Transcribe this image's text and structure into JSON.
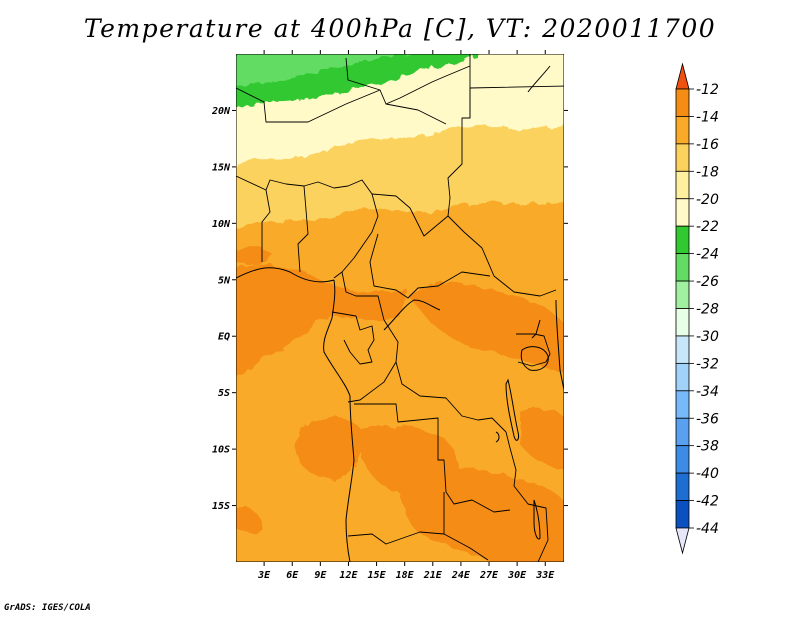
{
  "chart_data": {
    "type": "heatmap",
    "title": "Temperature at 400hPa [C], VT: 2020011700",
    "variable": "Temperature",
    "units": "C",
    "pressure_level": "400hPa",
    "valid_time": "2020011700",
    "lon_range": [
      0,
      35
    ],
    "lat_range": [
      -20,
      25
    ],
    "x_ticks": [
      "3E",
      "6E",
      "9E",
      "12E",
      "15E",
      "18E",
      "21E",
      "24E",
      "27E",
      "30E",
      "33E"
    ],
    "x_tick_values": [
      3,
      6,
      9,
      12,
      15,
      18,
      21,
      24,
      27,
      30,
      33
    ],
    "y_ticks": [
      "20N",
      "15N",
      "10N",
      "5N",
      "EQ",
      "5S",
      "10S",
      "15S"
    ],
    "y_tick_values": [
      20,
      15,
      10,
      5,
      0,
      -5,
      -10,
      -15
    ],
    "colorbar": {
      "labels": [
        "-12",
        "-14",
        "-16",
        "-18",
        "-20",
        "-22",
        "-24",
        "-26",
        "-28",
        "-30",
        "-32",
        "-34",
        "-36",
        "-38",
        "-40",
        "-42",
        "-44"
      ],
      "levels": [
        -12,
        -14,
        -16,
        -18,
        -20,
        -22,
        -24,
        -26,
        -28,
        -30,
        -32,
        -34,
        -36,
        -38,
        -40,
        -42,
        -44
      ],
      "colors": [
        "#f06010",
        "#f58c14",
        "#f8aa28",
        "#fcd25f",
        "#fff0a0",
        "#fffac8",
        "#32c832",
        "#64dc64",
        "#a0f0a0",
        "#e6ffe6",
        "#c8e6fa",
        "#a0d2fa",
        "#78b9fa",
        "#5aa0f0",
        "#3c8ce6",
        "#1e6ed2",
        "#0a50be",
        "#0a148c"
      ],
      "top_arrow_color": "#f05010",
      "bottom_arrow_color": "#e6e6fa"
    },
    "fields": [
      {
        "range": "-20 to -22",
        "color": "#fffac8",
        "region": "Sahara, north of ~14N"
      },
      {
        "range": "-22 to -24",
        "color": "#32c832",
        "region": "northwest corner near 22-24N"
      },
      {
        "range": "-24 to -26",
        "color": "#64dc64",
        "region": "far northwest corner"
      },
      {
        "range": "-18 to -20",
        "color": "#fcd25f",
        "region": "Sahel band ~9-14N"
      },
      {
        "range": "-16 to -18",
        "color": "#f8aa28",
        "region": "most of central and southern Africa"
      },
      {
        "range": "-14 to -16",
        "color": "#f58c14",
        "region": "patches in Gulf of Guinea, Congo basin, Angola, Zambia"
      }
    ]
  },
  "credit": "GrADS: IGES/COLA"
}
